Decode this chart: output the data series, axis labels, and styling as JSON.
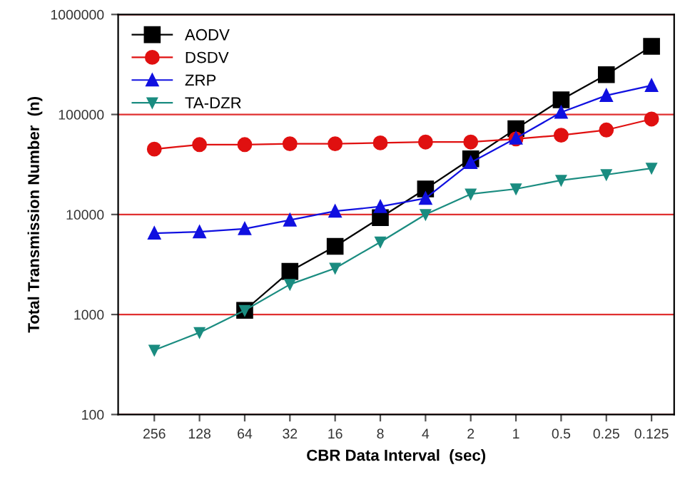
{
  "chart_data": {
    "type": "line",
    "xlabel": "CBR Data Interval  (sec)",
    "ylabel": "Total Transmission Number  (n)",
    "categories": [
      "256",
      "128",
      "64",
      "32",
      "16",
      "8",
      "4",
      "2",
      "1",
      "0.5",
      "0.25",
      "0.125"
    ],
    "series": [
      {
        "name": "AODV",
        "color": "#000000",
        "marker": "square",
        "values": [
          null,
          null,
          1100,
          2700,
          4800,
          9300,
          18000,
          36000,
          72000,
          140000,
          250000,
          480000
        ]
      },
      {
        "name": "DSDV",
        "color": "#e01010",
        "marker": "circle",
        "values": [
          45000,
          50000,
          50000,
          51000,
          51000,
          52000,
          53000,
          53000,
          57000,
          62000,
          70000,
          90000
        ]
      },
      {
        "name": "ZRP",
        "color": "#1010e0",
        "marker": "triangle",
        "values": [
          6500,
          6700,
          7200,
          8800,
          10800,
          12000,
          14500,
          33000,
          58000,
          105000,
          155000,
          195000
        ]
      },
      {
        "name": "TA-DZR",
        "color": "#1a8c80",
        "marker": "triangle_down",
        "values": [
          440,
          660,
          1100,
          2000,
          2900,
          5300,
          10000,
          16000,
          18000,
          22000,
          25000,
          29000
        ]
      }
    ],
    "log": "y",
    "ylim": [
      100,
      1000000
    ],
    "yticks": [
      100,
      1000,
      10000,
      100000,
      1000000
    ],
    "grid": "y",
    "legend": "top left"
  }
}
